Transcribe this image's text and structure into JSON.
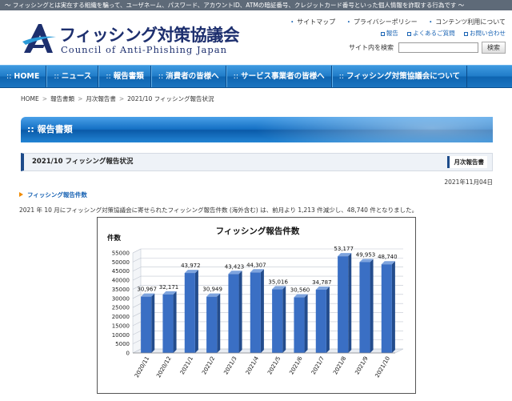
{
  "topbar": {
    "text": "～ フィッシングとは実在する組織を騙って、ユーザネーム、パスワード、アカウントID、ATMの暗証番号、クレジットカード番号といった個人情報を詐取する行為です ～"
  },
  "header": {
    "logo_jp": "フィッシング対策協議会",
    "logo_en": "Council of Anti-Phishing Japan",
    "util_links": [
      "サイトマップ",
      "プライバシーポリシー",
      "コンテンツ利用について"
    ],
    "util_links2": [
      "報告",
      "よくあるご質問",
      "お問い合わせ"
    ],
    "search_label": "サイト内を検索",
    "search_value": "",
    "search_button": "検索",
    "accent_color": "#1d2f6e"
  },
  "nav": {
    "items": [
      "HOME",
      "ニュース",
      "報告書類",
      "消費者の皆様へ",
      "サービス事業者の皆様へ",
      "フィッシング対策協議会について"
    ],
    "prefix": "::"
  },
  "breadcrumb": [
    "HOME",
    "報告書類",
    "月次報告書",
    "2021/10 フィッシング報告状況"
  ],
  "page": {
    "heading": ":: 報告書類",
    "subheading": "2021/10 フィッシング報告状況",
    "category": "月次報告書",
    "date": "2021年11月04日",
    "section_title": "フィッシング報告件数",
    "paragraph": "2021 年 10 月にフィッシング対策協議会に寄せられたフィッシング報告件数 (海外含む) は、前月より 1,213 件減少し、48,740 件となりました。"
  },
  "chart_data": {
    "type": "bar",
    "title": "フィッシング報告件数",
    "ylabel": "件数",
    "xlabel": "",
    "categories": [
      "2020/11",
      "2020/12",
      "2021/1",
      "2021/2",
      "2021/3",
      "2021/4",
      "2021/5",
      "2021/6",
      "2021/7",
      "2021/8",
      "2021/9",
      "2021/10"
    ],
    "values": [
      30967,
      32171,
      43972,
      30949,
      43423,
      44307,
      35016,
      30560,
      34787,
      53177,
      49953,
      48740
    ],
    "value_labels": [
      "30,967",
      "32,171",
      "43,972",
      "30,949",
      "43,423",
      "44,307",
      "35,016",
      "30,560",
      "34,787",
      "53,177",
      "49,953",
      "48,740"
    ],
    "ylim": [
      0,
      55000
    ],
    "yticks": [
      "0",
      "5000",
      "10000",
      "15000",
      "20000",
      "25000",
      "30000",
      "35000",
      "40000",
      "45000",
      "50000",
      "55000"
    ],
    "grid": true,
    "bar_color": "#3a6fc4"
  }
}
